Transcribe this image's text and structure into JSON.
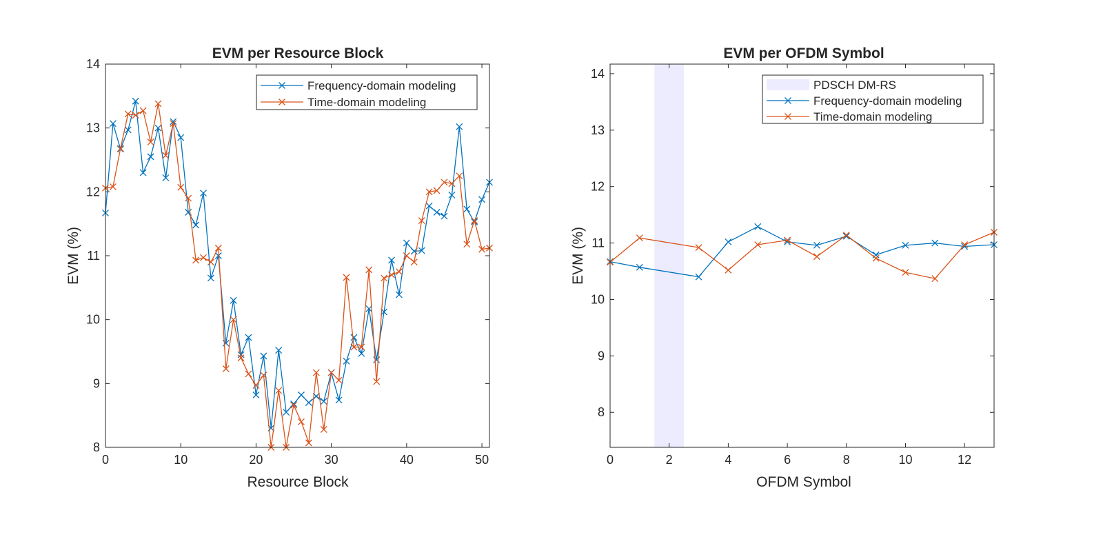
{
  "chart_data": [
    {
      "type": "line",
      "title": "EVM per Resource Block",
      "xlabel": "Resource Block",
      "ylabel": "EVM (%)",
      "xlim": [
        0,
        51
      ],
      "ylim": [
        8,
        14
      ],
      "xticks": [
        "0",
        "10",
        "20",
        "30",
        "40",
        "50"
      ],
      "yticks": [
        "8",
        "9",
        "10",
        "11",
        "12",
        "13",
        "14"
      ],
      "grid": false,
      "legend_position": "top-right",
      "marker": "x",
      "x": [
        0,
        1,
        2,
        3,
        4,
        5,
        6,
        7,
        8,
        9,
        10,
        11,
        12,
        13,
        14,
        15,
        16,
        17,
        18,
        19,
        20,
        21,
        22,
        23,
        24,
        25,
        26,
        27,
        28,
        29,
        30,
        31,
        32,
        33,
        34,
        35,
        36,
        37,
        38,
        39,
        40,
        41,
        42,
        43,
        44,
        45,
        46,
        47,
        48,
        49,
        50,
        51
      ],
      "series": [
        {
          "name": "Frequency-domain modeling",
          "color": "#0072BD",
          "values": [
            11.67,
            13.07,
            12.67,
            12.97,
            13.42,
            12.3,
            12.55,
            13.0,
            12.22,
            13.1,
            12.85,
            11.68,
            11.48,
            11.98,
            10.65,
            11.0,
            9.63,
            10.3,
            9.45,
            9.72,
            8.82,
            9.43,
            8.3,
            9.52,
            8.55,
            8.68,
            8.82,
            8.7,
            8.8,
            8.72,
            9.17,
            8.74,
            9.35,
            9.72,
            9.47,
            10.17,
            9.37,
            10.12,
            10.93,
            10.39,
            11.2,
            11.07,
            11.08,
            11.78,
            11.68,
            11.62,
            11.95,
            13.02,
            11.73,
            11.53,
            11.88,
            12.15
          ]
        },
        {
          "name": "Time-domain modeling",
          "color": "#D95319",
          "values": [
            12.06,
            12.08,
            12.68,
            13.22,
            13.2,
            13.27,
            12.78,
            13.38,
            12.57,
            13.07,
            12.07,
            11.9,
            10.93,
            10.97,
            10.9,
            11.12,
            9.23,
            10.0,
            9.4,
            9.15,
            8.97,
            9.13,
            8.0,
            8.89,
            8.0,
            8.66,
            8.4,
            8.07,
            9.17,
            8.28,
            9.17,
            9.05,
            10.66,
            9.57,
            9.57,
            10.78,
            9.03,
            10.65,
            10.7,
            10.75,
            11.0,
            10.9,
            11.55,
            12.0,
            12.02,
            12.15,
            12.13,
            12.25,
            11.18,
            11.55,
            11.1,
            11.12
          ]
        }
      ]
    },
    {
      "type": "line",
      "title": "EVM per OFDM Symbol",
      "xlabel": "OFDM Symbol",
      "ylabel": "EVM (%)",
      "xlim": [
        0,
        13
      ],
      "ylim": [
        7.38,
        14.17
      ],
      "xticks": [
        "0",
        "2",
        "4",
        "6",
        "8",
        "10",
        "12"
      ],
      "yticks": [
        "8",
        "9",
        "10",
        "11",
        "12",
        "13",
        "14"
      ],
      "grid": false,
      "legend_position": "top-right",
      "marker": "x",
      "shaded_region": {
        "name": "PDSCH DM-RS",
        "x": [
          1.5,
          2.5
        ],
        "color": "#ECECFE"
      },
      "x": [
        0,
        1,
        3,
        4,
        5,
        6,
        7,
        8,
        9,
        10,
        11,
        12,
        13
      ],
      "series": [
        {
          "name": "Frequency-domain modeling",
          "color": "#0072BD",
          "values": [
            10.67,
            10.57,
            10.4,
            11.02,
            11.29,
            11.02,
            10.96,
            11.12,
            10.79,
            10.96,
            11.0,
            10.94,
            10.97
          ]
        },
        {
          "name": "Time-domain modeling",
          "color": "#D95319",
          "values": [
            10.66,
            11.09,
            10.92,
            10.52,
            10.97,
            11.05,
            10.76,
            11.14,
            10.73,
            10.48,
            10.37,
            10.97,
            11.19
          ]
        }
      ]
    }
  ]
}
